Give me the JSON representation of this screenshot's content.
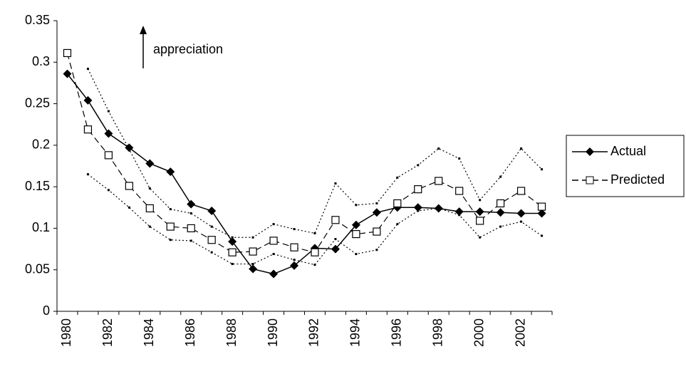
{
  "chart_data": {
    "type": "line",
    "annotation": "appreciation",
    "categories": [
      "1980",
      null,
      "1982",
      null,
      "1984",
      null,
      "1986",
      null,
      "1988",
      null,
      "1990",
      null,
      "1992",
      null,
      "1994",
      null,
      "1996",
      null,
      "1998",
      null,
      "2000",
      null,
      "2002",
      null
    ],
    "series": [
      {
        "name": "Actual",
        "color": "#000000",
        "style": "solid",
        "marker": "diamond",
        "values": [
          0.286,
          0.254,
          0.214,
          0.197,
          0.178,
          0.168,
          0.129,
          0.121,
          0.084,
          0.051,
          0.045,
          0.055,
          0.076,
          0.075,
          0.104,
          0.119,
          0.125,
          0.125,
          0.124,
          0.12,
          0.12,
          0.119,
          0.118,
          0.118
        ]
      },
      {
        "name": "Predicted",
        "color": "#000000",
        "style": "dashed",
        "marker": "square",
        "values": [
          0.311,
          0.219,
          0.188,
          0.151,
          0.124,
          0.102,
          0.1,
          0.086,
          0.071,
          0.072,
          0.085,
          0.077,
          0.071,
          0.11,
          0.093,
          0.096,
          0.13,
          0.147,
          0.157,
          0.145,
          0.109,
          0.13,
          0.145,
          0.126
        ]
      },
      {
        "color": "#000000",
        "style": "dotted",
        "marker": "dot",
        "values": [
          null,
          0.292,
          0.241,
          0.195,
          0.148,
          0.123,
          0.118,
          0.102,
          0.089,
          0.089,
          0.105,
          0.099,
          0.094,
          0.154,
          0.128,
          0.13,
          0.161,
          0.176,
          0.196,
          0.184,
          0.134,
          0.162,
          0.196,
          0.171
        ]
      },
      {
        "color": "#000000",
        "style": "dotted",
        "marker": "dot",
        "values": [
          null,
          0.165,
          0.146,
          0.125,
          0.102,
          0.086,
          0.085,
          0.071,
          0.057,
          0.057,
          0.069,
          0.062,
          0.056,
          0.087,
          0.069,
          0.074,
          0.105,
          0.121,
          0.124,
          0.116,
          0.089,
          0.102,
          0.108,
          0.091
        ]
      }
    ],
    "ylim": [
      0,
      0.35
    ],
    "yticks": [
      0,
      0.05,
      0.1,
      0.15,
      0.2,
      0.25,
      0.3,
      0.35
    ],
    "grid": false,
    "legend": "right"
  }
}
